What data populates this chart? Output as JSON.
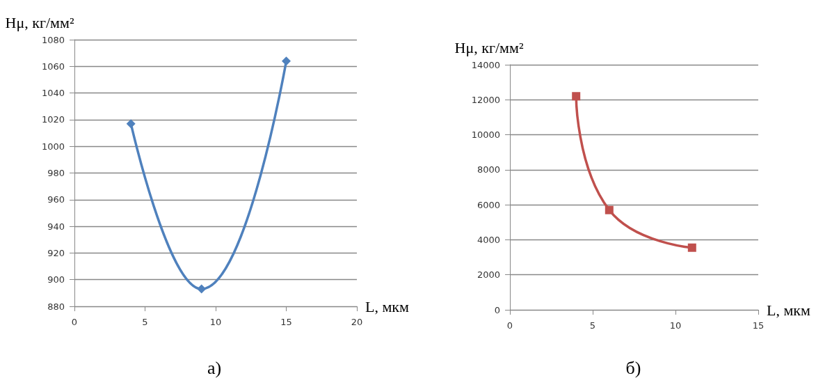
{
  "chart_data": [
    {
      "type": "line",
      "xlabel": "L, мкм",
      "ylabel": "Hμ, кг/мм²",
      "annotations": [
        "а)"
      ],
      "series": [
        {
          "color": "#4f81bd",
          "x": [
            4,
            9,
            15
          ],
          "values": [
            1017,
            893,
            1064
          ]
        }
      ],
      "xlim": [
        0,
        20
      ],
      "xticks": [
        0,
        5,
        10,
        15,
        20
      ],
      "ylim": [
        880,
        1080
      ],
      "yticks": [
        880,
        900,
        920,
        940,
        960,
        980,
        1000,
        1020,
        1040,
        1060,
        1080
      ],
      "grid": "y",
      "marker": "diamond",
      "line_style": "solid"
    },
    {
      "type": "line",
      "xlabel": "L, мкм",
      "ylabel": "Hμ, кг/мм²",
      "annotations": [
        "б)"
      ],
      "series": [
        {
          "color": "#c0504d",
          "x": [
            4,
            6,
            11
          ],
          "values": [
            12200,
            5700,
            3550
          ]
        }
      ],
      "xlim": [
        0,
        15
      ],
      "xticks": [
        0,
        5,
        10,
        15
      ],
      "ylim": [
        0,
        14000
      ],
      "yticks": [
        0,
        2000,
        4000,
        6000,
        8000,
        10000,
        12000,
        14000
      ],
      "grid": "y",
      "marker": "square",
      "line_style": "solid"
    }
  ]
}
